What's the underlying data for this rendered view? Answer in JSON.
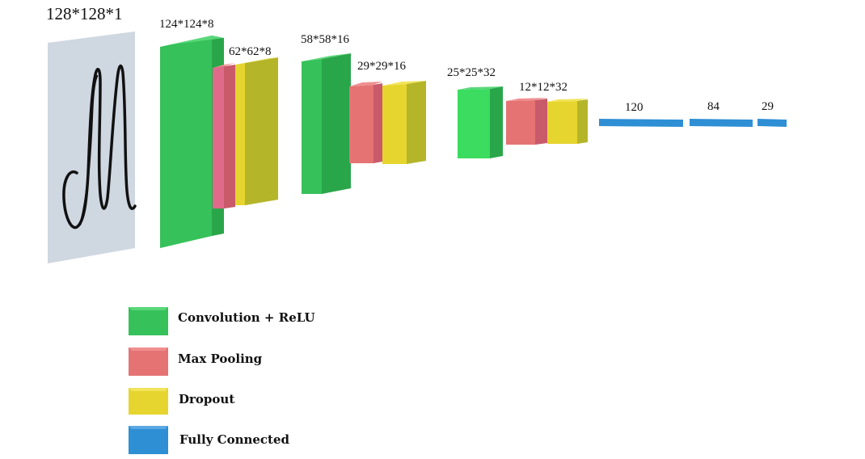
{
  "input": {
    "label": "128*128*1",
    "glyph": "handwritten-M"
  },
  "layers": [
    {
      "id": "conv1",
      "type": "conv",
      "label": "124*124*8"
    },
    {
      "id": "pool1",
      "type": "pool",
      "label": ""
    },
    {
      "id": "drop1",
      "type": "dropout",
      "label": "62*62*8"
    },
    {
      "id": "conv2",
      "type": "conv",
      "label": "58*58*16"
    },
    {
      "id": "pool2",
      "type": "pool",
      "label": ""
    },
    {
      "id": "drop2",
      "type": "dropout",
      "label": "29*29*16"
    },
    {
      "id": "conv3",
      "type": "conv",
      "label": "25*25*32"
    },
    {
      "id": "pool3",
      "type": "pool",
      "label": ""
    },
    {
      "id": "drop3",
      "type": "dropout",
      "label": "12*12*32"
    },
    {
      "id": "fc1",
      "type": "fc",
      "label": "120"
    },
    {
      "id": "fc2",
      "type": "fc",
      "label": "84"
    },
    {
      "id": "fc3",
      "type": "fc",
      "label": "29"
    }
  ],
  "legend": [
    {
      "type": "conv",
      "label": "Convolution + ReLU"
    },
    {
      "type": "pool",
      "label": "Max Pooling"
    },
    {
      "type": "dropout",
      "label": "Dropout"
    },
    {
      "type": "fc",
      "label": "Fully Connected"
    }
  ],
  "colors": {
    "conv": {
      "front": "#36c15a",
      "side": "#2aa64a",
      "top": "#5ad77a"
    },
    "pool": {
      "front": "#e57373",
      "side": "#c85a6a",
      "top": "#f08f8f"
    },
    "dropout": {
      "front": "#e6d52e",
      "side": "#b5b52a",
      "top": "#f2e45a"
    },
    "fc": {
      "front": "#2e8fd4",
      "side": "#2479b8",
      "top": "#5aa9e4"
    },
    "input_panel": "#cfd7e1",
    "ink": "#111111"
  }
}
